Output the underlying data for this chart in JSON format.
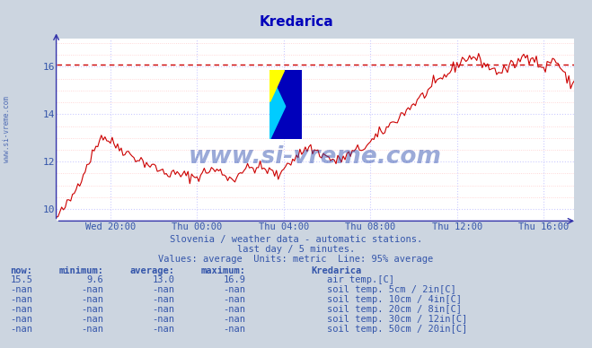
{
  "title": "Kredarica",
  "bg_color": "#ccd5e0",
  "plot_bg_color": "#ffffff",
  "line_color": "#cc0000",
  "hline_color": "#cc0000",
  "hline_value": 16.1,
  "grid_color_major": "#ccccff",
  "grid_color_minor": "#ffcccc",
  "axis_color": "#3333aa",
  "text_color": "#3355aa",
  "ylim": [
    9.5,
    17.2
  ],
  "yticks": [
    10,
    12,
    14,
    16
  ],
  "xlabel_ticks": [
    "Wed 20:00",
    "Thu 00:00",
    "Thu 04:00",
    "Thu 08:00",
    "Thu 12:00",
    "Thu 16:00"
  ],
  "watermark_text": "www.si-vreme.com",
  "watermark_color": "#2244aa",
  "subtitle1": "Slovenia / weather data - automatic stations.",
  "subtitle2": "last day / 5 minutes.",
  "subtitle3": "Values: average  Units: metric  Line: 95% average",
  "table_headers": [
    "now:",
    "minimum:",
    "average:",
    "maximum:",
    "Kredarica"
  ],
  "table_row1": [
    "15.5",
    "9.6",
    "13.0",
    "16.9"
  ],
  "table_label1": "air temp.[C]",
  "table_color1": "#dd0000",
  "table_labels": [
    "soil temp. 5cm / 2in[C]",
    "soil temp. 10cm / 4in[C]",
    "soil temp. 20cm / 8in[C]",
    "soil temp. 30cm / 12in[C]",
    "soil temp. 50cm / 20in[C]"
  ],
  "table_colors": [
    "#c8a090",
    "#c87828",
    "#a06818",
    "#706840",
    "#6c3810"
  ]
}
